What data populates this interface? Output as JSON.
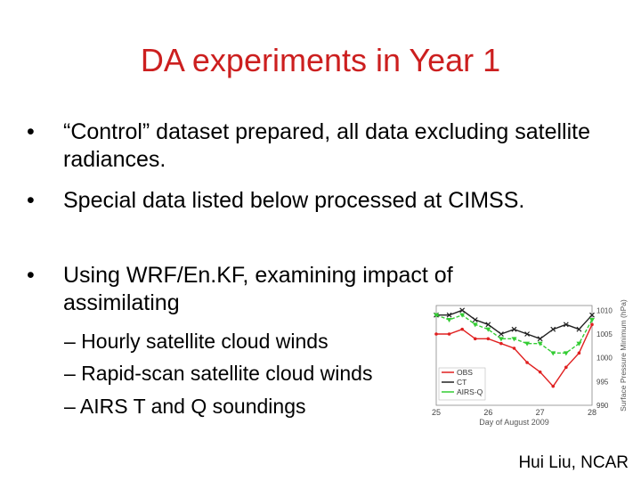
{
  "slide": {
    "title": "DA experiments in Year 1",
    "bullets": [
      {
        "marker": "•",
        "text": "“Control” dataset prepared, all data excluding satellite radiances."
      },
      {
        "marker": "•",
        "text": "Special data listed below processed at CIMSS."
      },
      {
        "marker": "•",
        "text": "Using WRF/En.KF, examining impact of assimilating"
      }
    ],
    "sub_bullets": [
      "– Hourly satellite cloud winds",
      "– Rapid-scan satellite cloud winds",
      "– AIRS T and Q soundings"
    ],
    "credit": "Hui Liu, NCAR"
  },
  "chart_data": {
    "type": "line",
    "xlabel": "Day of August 2009",
    "ylabel": "Surface Pressure Minimum (hPa)",
    "xlim": [
      25,
      28
    ],
    "ylim": [
      990,
      1011
    ],
    "x_ticks": [
      "25",
      "26",
      "27",
      "28"
    ],
    "y_ticks": [
      "1010",
      "1005",
      "1000",
      "995",
      "990"
    ],
    "legend": [
      "OBS",
      "CT",
      "AIRS-Q"
    ],
    "series": [
      {
        "name": "OBS",
        "color": "#e02020",
        "x": [
          25.0,
          25.25,
          25.5,
          25.75,
          26.0,
          26.25,
          26.5,
          26.75,
          27.0,
          27.25,
          27.5,
          27.75,
          28.0
        ],
        "y": [
          1005,
          1005,
          1006,
          1004,
          1004,
          1003,
          1002,
          999,
          997,
          994,
          998,
          1001,
          1007
        ]
      },
      {
        "name": "CT",
        "color": "#222222",
        "x": [
          25.0,
          25.25,
          25.5,
          25.75,
          26.0,
          26.25,
          26.5,
          26.75,
          27.0,
          27.25,
          27.5,
          27.75,
          28.0
        ],
        "y": [
          1009,
          1009,
          1010,
          1008,
          1007,
          1005,
          1006,
          1005,
          1004,
          1006,
          1007,
          1006,
          1009
        ]
      },
      {
        "name": "AIRS-Q",
        "color": "#33cc33",
        "x": [
          25.0,
          25.25,
          25.5,
          25.75,
          26.0,
          26.25,
          26.5,
          26.75,
          27.0,
          27.25,
          27.5,
          27.75,
          28.0
        ],
        "y": [
          1009,
          1008,
          1009,
          1007,
          1006,
          1004,
          1004,
          1003,
          1003,
          1001,
          1001,
          1003,
          1008
        ]
      }
    ]
  }
}
